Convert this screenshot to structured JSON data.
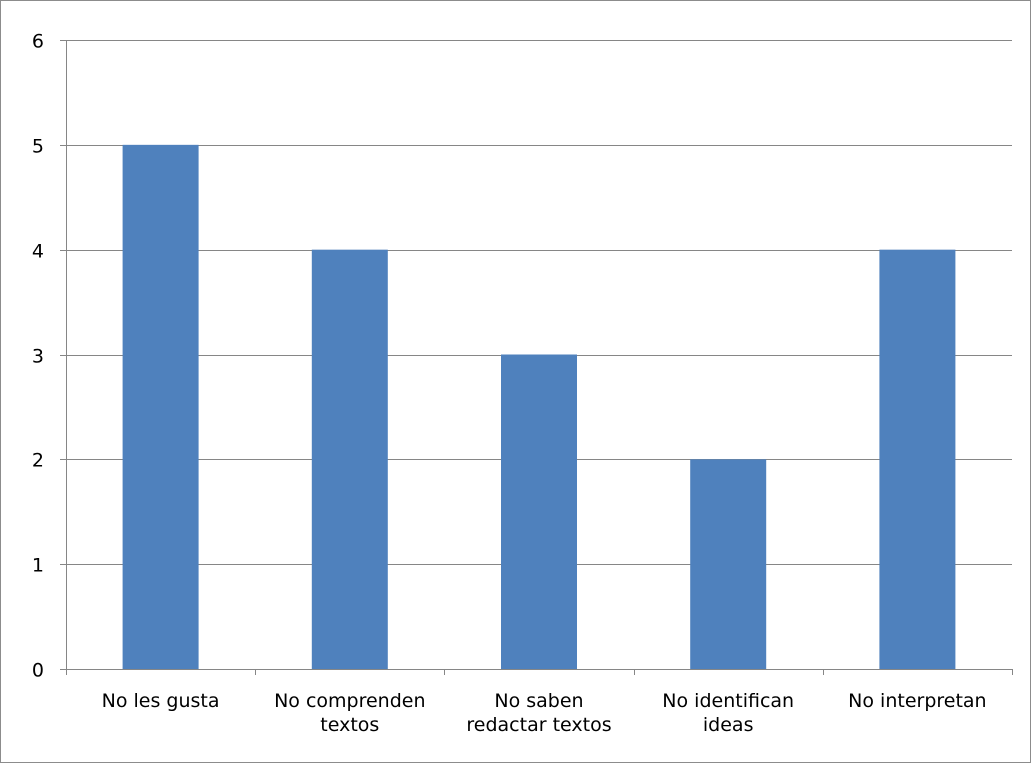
{
  "chart_data": {
    "type": "bar",
    "categories": [
      [
        "No les gusta"
      ],
      [
        "No comprenden",
        "textos"
      ],
      [
        "No saben",
        "redactar textos"
      ],
      [
        "No identifican",
        "ideas"
      ],
      [
        "No interpretan"
      ]
    ],
    "values": [
      5,
      4,
      3,
      2,
      4
    ],
    "title": "",
    "xlabel": "",
    "ylabel": "",
    "ylim": [
      0,
      6
    ],
    "yticks": [
      "0",
      "1",
      "2",
      "3",
      "4",
      "5",
      "6"
    ],
    "grid": true,
    "legend": "none",
    "colors": {
      "bar": "#4f81bd",
      "grid": "#868686",
      "axis": "#868686",
      "text": "#000000"
    }
  }
}
